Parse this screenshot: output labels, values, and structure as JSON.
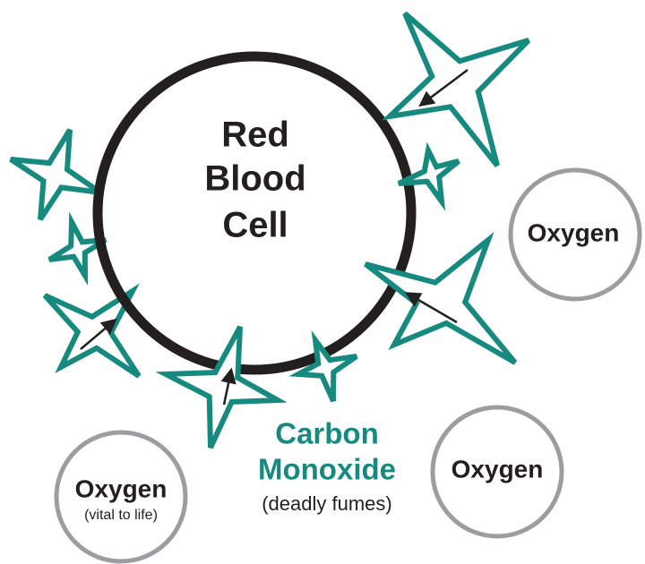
{
  "red_blood_cell": {
    "label_lines": [
      "Red",
      "Blood",
      "Cell"
    ]
  },
  "oxygen": [
    {
      "label": "Oxygen"
    },
    {
      "label": "Oxygen"
    },
    {
      "label": "Oxygen",
      "note": "(vital to life)"
    }
  ],
  "carbon_monoxide": {
    "label_lines": [
      "Carbon",
      "Monoxide"
    ],
    "note": "(deadly fumes)"
  }
}
